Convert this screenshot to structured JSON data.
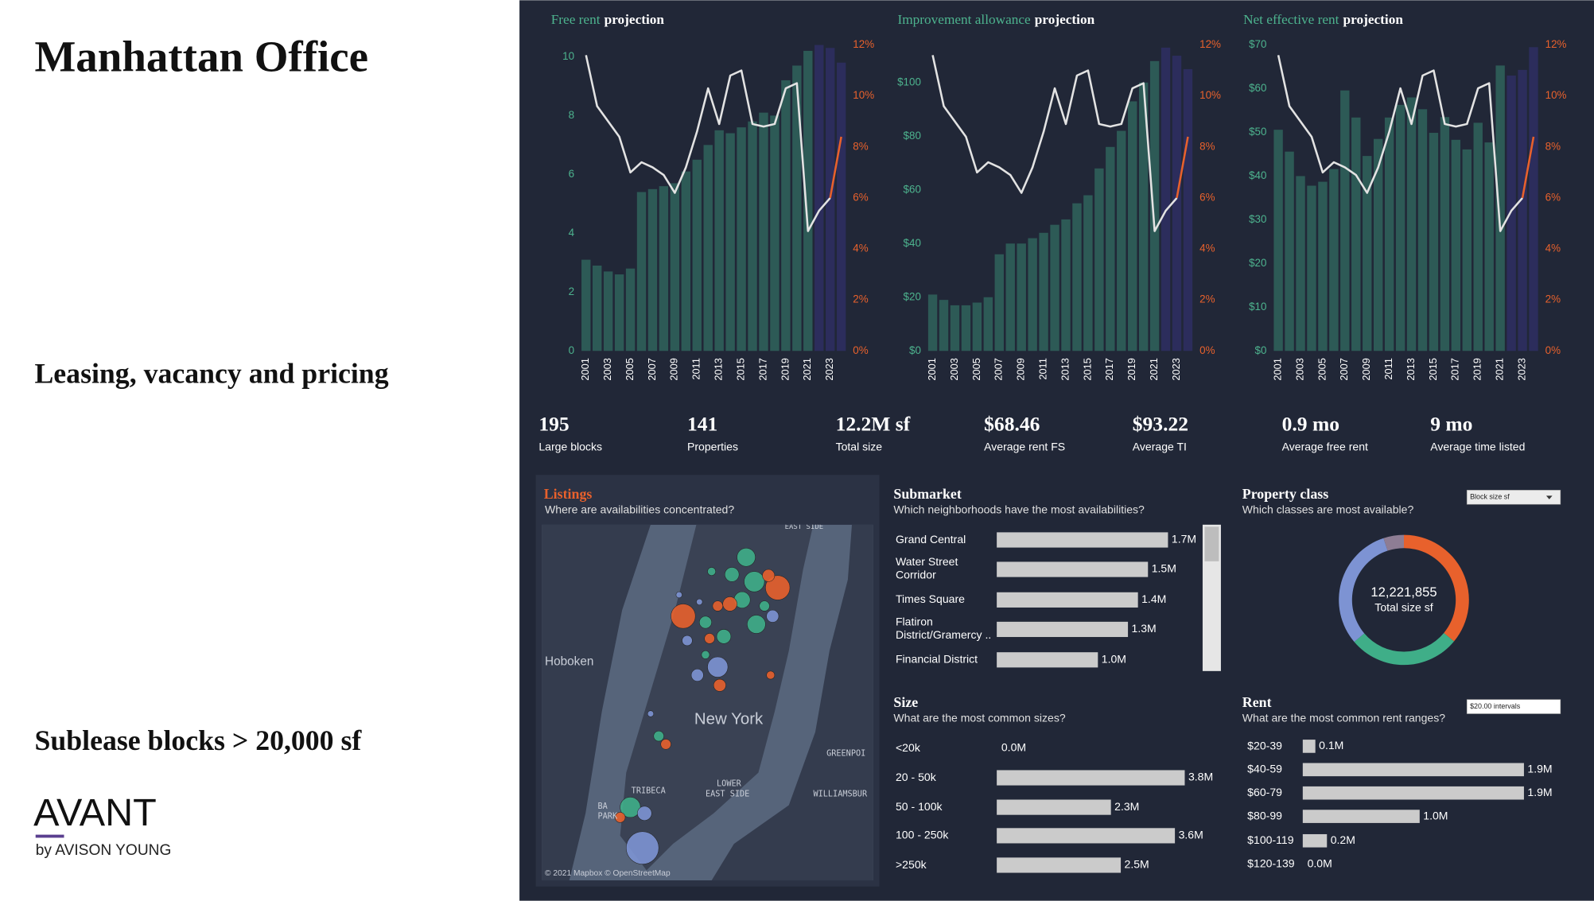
{
  "header": {
    "title": "Manhattan Office",
    "subtitle": "Leasing, vacancy and pricing",
    "note": "Sublease blocks > 20,000 sf",
    "brand": "AVANT",
    "brand_sub": "by AVISON YOUNG"
  },
  "chart_data": [
    {
      "type": "combo",
      "title_highlight": "Free rent",
      "title": "projection",
      "categories": [
        "2001",
        null,
        "2003",
        null,
        "2005",
        null,
        "2007",
        null,
        "2009",
        null,
        "2011",
        null,
        "2013",
        null,
        "2015",
        null,
        "2017",
        null,
        "2019",
        null,
        "2021",
        null,
        "2023",
        null
      ],
      "series": [
        {
          "type": "bar",
          "color": "#2d5a56",
          "values": [
            3.1,
            2.9,
            2.7,
            2.6,
            2.8,
            5.4,
            5.5,
            5.6,
            5.7,
            6.1,
            6.5,
            7.0,
            7.5,
            7.4,
            7.6,
            7.8,
            8.1,
            8.0,
            9.2,
            9.7,
            10.2,
            null,
            null,
            null
          ]
        },
        {
          "type": "bar",
          "color": "#2c2d5c",
          "values": [
            null,
            null,
            null,
            null,
            null,
            null,
            null,
            null,
            null,
            null,
            null,
            null,
            null,
            null,
            null,
            null,
            null,
            null,
            null,
            null,
            null,
            10.4,
            10.3,
            9.8
          ]
        },
        {
          "type": "line",
          "axis": "y2",
          "color": "#e3e3e3",
          "values": [
            11.6,
            9.6,
            9.0,
            8.4,
            7.0,
            7.4,
            7.2,
            6.9,
            6.2,
            7.2,
            8.6,
            10.3,
            8.9,
            10.8,
            11.0,
            8.9,
            8.8,
            8.9,
            10.3,
            10.5,
            4.7,
            5.5,
            6.0,
            null
          ]
        },
        {
          "type": "line",
          "axis": "y2",
          "color": "#e8612c",
          "values": [
            null,
            null,
            null,
            null,
            null,
            null,
            null,
            null,
            null,
            null,
            null,
            null,
            null,
            null,
            null,
            null,
            null,
            null,
            null,
            null,
            null,
            null,
            6.0,
            8.4
          ]
        }
      ],
      "ylim": [
        0,
        10.4
      ],
      "yticks": [
        0,
        2,
        4,
        6,
        8,
        10
      ],
      "y2lim": [
        0,
        12
      ],
      "y2ticks": [
        {
          "value": 0,
          "label": "0%"
        },
        {
          "value": 2,
          "label": "2%"
        },
        {
          "value": 4,
          "label": "4%"
        },
        {
          "value": 6,
          "label": "6%"
        },
        {
          "value": 8,
          "label": "8%"
        },
        {
          "value": 10,
          "label": "10%"
        },
        {
          "value": 12,
          "label": "12%"
        }
      ]
    },
    {
      "type": "combo",
      "title_highlight": "Improvement allowance",
      "title": "projection",
      "categories": [
        "2001",
        null,
        "2003",
        null,
        "2005",
        null,
        "2007",
        null,
        "2009",
        null,
        "2011",
        null,
        "2013",
        null,
        "2015",
        null,
        "2017",
        null,
        "2019",
        null,
        "2021",
        null,
        "2023",
        null
      ],
      "series": [
        {
          "type": "bar",
          "color": "#2d5a56",
          "values": [
            21,
            19,
            17,
            17,
            18,
            20,
            36,
            40,
            40,
            42,
            44,
            47,
            49,
            55,
            58,
            68,
            76,
            82,
            93,
            100,
            108,
            null,
            null,
            null
          ]
        },
        {
          "type": "bar",
          "color": "#2c2d5c",
          "values": [
            null,
            null,
            null,
            null,
            null,
            null,
            null,
            null,
            null,
            null,
            null,
            null,
            null,
            null,
            null,
            null,
            null,
            null,
            null,
            null,
            null,
            113,
            110,
            105
          ]
        },
        {
          "type": "line",
          "axis": "y2",
          "color": "#e3e3e3",
          "values": [
            11.6,
            9.6,
            9.0,
            8.4,
            7.0,
            7.4,
            7.2,
            6.9,
            6.2,
            7.2,
            8.6,
            10.3,
            8.9,
            10.8,
            11.0,
            8.9,
            8.8,
            8.9,
            10.3,
            10.5,
            4.7,
            5.5,
            6.0,
            null
          ]
        },
        {
          "type": "line",
          "axis": "y2",
          "color": "#e8612c",
          "values": [
            null,
            null,
            null,
            null,
            null,
            null,
            null,
            null,
            null,
            null,
            null,
            null,
            null,
            null,
            null,
            null,
            null,
            null,
            null,
            null,
            null,
            null,
            6.0,
            8.4
          ]
        }
      ],
      "ylim": [
        0,
        114
      ],
      "yticks": [
        {
          "value": 0,
          "label": "$0"
        },
        {
          "value": 20,
          "label": "$20"
        },
        {
          "value": 40,
          "label": "$40"
        },
        {
          "value": 60,
          "label": "$60"
        },
        {
          "value": 80,
          "label": "$80"
        },
        {
          "value": 100,
          "label": "$100"
        }
      ],
      "y2lim": [
        0,
        12
      ],
      "y2ticks": [
        {
          "value": 0,
          "label": "0%"
        },
        {
          "value": 2,
          "label": "2%"
        },
        {
          "value": 4,
          "label": "4%"
        },
        {
          "value": 6,
          "label": "6%"
        },
        {
          "value": 8,
          "label": "8%"
        },
        {
          "value": 10,
          "label": "10%"
        },
        {
          "value": 12,
          "label": "12%"
        }
      ]
    },
    {
      "type": "combo",
      "title_highlight": "Net effective rent",
      "title": "projection",
      "categories": [
        "2001",
        null,
        "2003",
        null,
        "2005",
        null,
        "2007",
        null,
        "2009",
        null,
        "2011",
        null,
        "2013",
        null,
        "2015",
        null,
        "2017",
        null,
        "2019",
        null,
        "2021",
        null,
        "2023",
        null
      ],
      "series": [
        {
          "type": "bar",
          "color": "#2d5a56",
          "values": [
            50.6,
            45.6,
            40,
            37.8,
            38.7,
            41.6,
            59.6,
            53.4,
            44.6,
            48.5,
            53.4,
            56.3,
            58,
            55.3,
            49.9,
            53.5,
            48.3,
            46.1,
            52.2,
            47.7,
            65.3,
            null,
            null,
            null
          ]
        },
        {
          "type": "bar",
          "color": "#2c2d5c",
          "values": [
            null,
            null,
            null,
            null,
            null,
            null,
            null,
            null,
            null,
            null,
            null,
            null,
            null,
            null,
            null,
            null,
            null,
            null,
            null,
            null,
            null,
            63,
            64.3,
            69.5
          ]
        },
        {
          "type": "line",
          "axis": "y2",
          "color": "#e3e3e3",
          "values": [
            11.6,
            9.6,
            9.0,
            8.4,
            7.0,
            7.4,
            7.2,
            6.9,
            6.2,
            7.2,
            8.6,
            10.3,
            8.9,
            10.8,
            11.0,
            8.9,
            8.8,
            8.9,
            10.3,
            10.5,
            4.7,
            5.5,
            6.0,
            null
          ]
        },
        {
          "type": "line",
          "axis": "y2",
          "color": "#e8612c",
          "values": [
            null,
            null,
            null,
            null,
            null,
            null,
            null,
            null,
            null,
            null,
            null,
            null,
            null,
            null,
            null,
            null,
            null,
            null,
            null,
            null,
            null,
            null,
            6.0,
            8.4
          ]
        }
      ],
      "ylim": [
        0,
        70
      ],
      "yticks": [
        {
          "value": 0,
          "label": "$0"
        },
        {
          "value": 10,
          "label": "$10"
        },
        {
          "value": 20,
          "label": "$20"
        },
        {
          "value": 30,
          "label": "$30"
        },
        {
          "value": 40,
          "label": "$40"
        },
        {
          "value": 50,
          "label": "$50"
        },
        {
          "value": 60,
          "label": "$60"
        },
        {
          "value": 70,
          "label": "$70"
        }
      ],
      "y2lim": [
        0,
        12
      ],
      "y2ticks": [
        {
          "value": 0,
          "label": "0%"
        },
        {
          "value": 2,
          "label": "2%"
        },
        {
          "value": 4,
          "label": "4%"
        },
        {
          "value": 6,
          "label": "6%"
        },
        {
          "value": 8,
          "label": "8%"
        },
        {
          "value": 10,
          "label": "10%"
        },
        {
          "value": 12,
          "label": "12%"
        }
      ]
    },
    {
      "type": "hbar",
      "title": "Submarket",
      "subtitle": "Which neighborhoods have the most availabilities?",
      "categories": [
        "Grand Central",
        "Water Street Corridor",
        "Times Square",
        "Flatiron District/Gramercy ..",
        "Financial District"
      ],
      "values": [
        1.7,
        1.5,
        1.4,
        1.3,
        1.0
      ],
      "value_labels": [
        "1.7M",
        "1.5M",
        "1.4M",
        "1.3M",
        "1.0M"
      ],
      "color": "#cbcbcb"
    },
    {
      "type": "hbar",
      "title": "Size",
      "subtitle": "What are the most common sizes?",
      "categories": [
        "<20k",
        "20 - 50k",
        "50 - 100k",
        "100 - 250k",
        ">250k"
      ],
      "values": [
        0.0,
        3.8,
        2.3,
        3.6,
        2.5
      ],
      "value_labels": [
        "0.0M",
        "3.8M",
        "2.3M",
        "3.6M",
        "2.5M"
      ],
      "color": "#cbcbcb"
    },
    {
      "type": "donut",
      "title": "Property class",
      "subtitle": "Which classes are most available?",
      "total": {
        "value": 12221855,
        "label": "12,221,855"
      },
      "total_label": "Total size sf",
      "values": [
        4400000,
        3400000,
        3800000,
        620000
      ],
      "colors": [
        "#e8612c",
        "#3fae88",
        "#7d93d3",
        "#8e7d94"
      ]
    },
    {
      "type": "hbar",
      "title": "Rent",
      "subtitle": "What are the most common rent ranges?",
      "categories": [
        "$20-39",
        "$40-59",
        "$60-79",
        "$80-99",
        "$100-119",
        "$120-139"
      ],
      "values": [
        0.1,
        1.9,
        1.9,
        1.0,
        0.2,
        0.0
      ],
      "value_labels": [
        "0.1M",
        "1.9M",
        "1.9M",
        "1.0M",
        "0.2M",
        "0.0M"
      ],
      "color": "#cbcbcb"
    }
  ],
  "kpis": [
    {
      "value": 195,
      "label": "Large blocks"
    },
    {
      "value": 141,
      "label": "Properties"
    },
    {
      "value": "12.2M sf",
      "label": "Total size"
    },
    {
      "value": "$68.46",
      "label": "Average rent FS"
    },
    {
      "value": "$93.22",
      "label": "Average TI"
    },
    {
      "value": "0.9 mo",
      "label": "Average free rent"
    },
    {
      "value": "9 mo",
      "label": "Average time listed"
    }
  ],
  "map": {
    "title": "Listings",
    "subtitle": "Where are availabilities concentrated?",
    "labels": [
      "EAST SIDE",
      "Hoboken",
      "New York",
      "LOWER",
      "EAST SIDE",
      "TRIBECA",
      "BA",
      "PARK",
      "GREENPOI",
      "WILLIAMSBUR",
      "© 2021 Mapbox © OpenStreetMap"
    ]
  },
  "controls": {
    "property_class_measure": "Block size sf",
    "rent_interval": "$20.00 intervals"
  }
}
